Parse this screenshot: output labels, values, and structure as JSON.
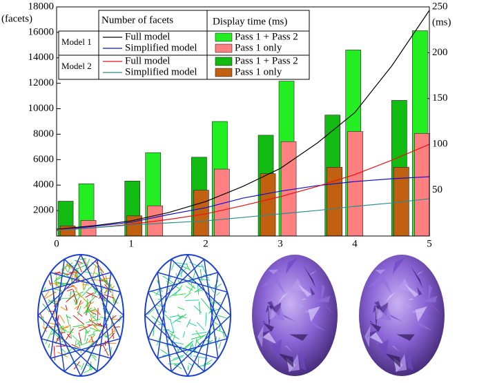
{
  "chart_data": {
    "type": "combo",
    "y_label": "(facets)",
    "y2_label": "(ms)",
    "xlim": [
      0,
      5
    ],
    "xticks": [
      0,
      1,
      2,
      3,
      4,
      5
    ],
    "ylim": [
      0,
      18000
    ],
    "yticks": [
      2000,
      4000,
      6000,
      8000,
      10000,
      12000,
      14000,
      16000,
      18000
    ],
    "y2lim": [
      0,
      250
    ],
    "y2ticks": [
      50,
      100,
      150,
      200,
      250
    ],
    "x": [
      0,
      0.5,
      1,
      1.5,
      2,
      2.5,
      3,
      3.5,
      4,
      4.5,
      5
    ],
    "legend": {
      "headers": [
        "Number of facets",
        "Display time (ms)"
      ]
    },
    "models": [
      {
        "name": "Model 1",
        "series": [
          {
            "name": "Full model",
            "kind": "line",
            "color": "#000000",
            "values": [
              540,
              810,
              1190,
              1840,
              2710,
              3900,
              5310,
              7320,
              9700,
              13400,
              17730
            ]
          },
          {
            "name": "Simplified model",
            "kind": "line",
            "color": "#1010cc",
            "values": [
              490,
              760,
              1080,
              1680,
              2220,
              2980,
              3520,
              3960,
              4280,
              4500,
              4660
            ]
          },
          {
            "name": "Pass 1 + Pass 2",
            "kind": "bar",
            "axis": "y2",
            "color": "#22ee22",
            "values": [
              57,
              91,
              125,
              169,
              203,
              224
            ]
          },
          {
            "name": "Pass 1 only",
            "kind": "bar",
            "axis": "y2",
            "color": "#ff8080",
            "values": [
              17,
              33,
              73,
              103,
              114,
              112
            ]
          }
        ]
      },
      {
        "name": "Model 2",
        "series": [
          {
            "name": "Full model",
            "kind": "line",
            "color": "#ee1010",
            "values": [
              500,
              650,
              920,
              1300,
              1740,
              2390,
              3090,
              3900,
              4830,
              5970,
              7210
            ]
          },
          {
            "name": "Simplified model",
            "kind": "line",
            "color": "#2a8c8c",
            "values": [
              430,
              650,
              870,
              1030,
              1190,
              1460,
              1740,
              2010,
              2330,
              2600,
              2930
            ]
          },
          {
            "name": "Pass 1 + Pass 2",
            "kind": "bar",
            "axis": "y2",
            "color": "#11bb11",
            "values": [
              38,
              60,
              86,
              110,
              132,
              148
            ]
          },
          {
            "name": "Pass 1 only",
            "kind": "bar",
            "axis": "y2",
            "color": "#c06010",
            "values": [
              11,
              22,
              50,
              68,
              75,
              75
            ]
          }
        ]
      }
    ]
  }
}
